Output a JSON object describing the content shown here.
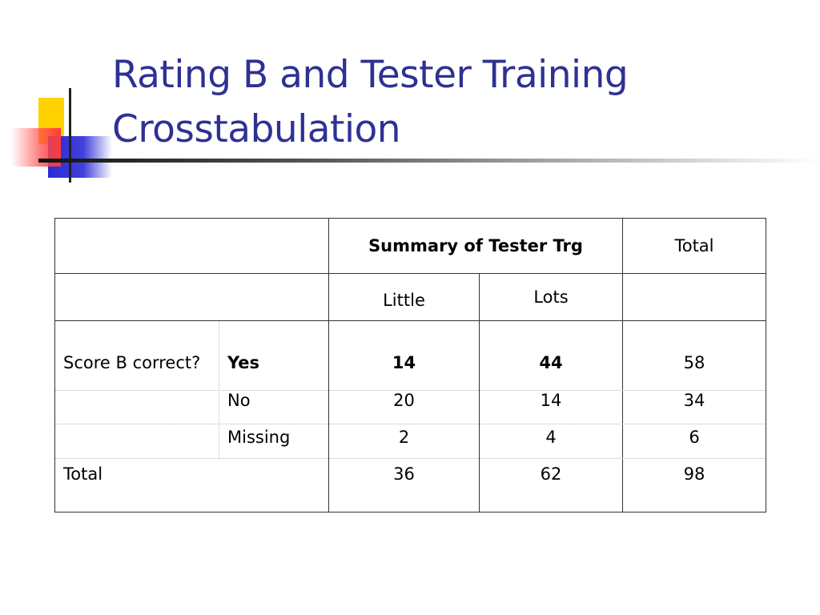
{
  "slide": {
    "title_line1": "Rating B and Tester Training",
    "title_line2": "Crosstabulation",
    "title_color": "#2e3192",
    "logo_icon": "stacked-squares-logo"
  },
  "table": {
    "header": {
      "group_label": "Summary of Tester Trg",
      "total_label": "Total",
      "columns": [
        "Little",
        "Lots"
      ]
    },
    "row_variable": "Score B correct?",
    "rows": [
      {
        "label": "Yes",
        "values": [
          "14",
          "44",
          "58"
        ],
        "bold": true
      },
      {
        "label": "No",
        "values": [
          "20",
          "14",
          "34"
        ],
        "bold": false
      },
      {
        "label": "Missing",
        "values": [
          "2",
          "4",
          "6"
        ],
        "bold": false
      }
    ],
    "total_row": {
      "label": "Total",
      "values": [
        "36",
        "62",
        "98"
      ]
    }
  }
}
